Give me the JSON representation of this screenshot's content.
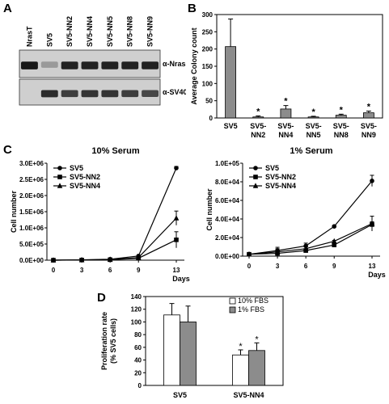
{
  "panel_labels": {
    "a": "A",
    "b": "B",
    "c": "C",
    "d": "D"
  },
  "blot": {
    "lanes": [
      "NrasT",
      "SV5",
      "SV5-NN2",
      "SV5-NN4",
      "SV5-NN5",
      "SV5-NN8",
      "SV5-NN9"
    ],
    "bands": [
      {
        "label": "α-Nras",
        "intensity": [
          0.95,
          0.25,
          0.9,
          0.9,
          0.9,
          0.9,
          0.9
        ]
      },
      {
        "label": "α-SV40",
        "intensity": [
          0.0,
          0.85,
          0.75,
          0.8,
          0.8,
          0.75,
          0.7
        ]
      }
    ]
  },
  "chart_data": [
    {
      "id": "B",
      "type": "bar",
      "title": "",
      "xlabel": "",
      "ylabel": "Average Colony count",
      "ylim": [
        0,
        300
      ],
      "yticks": [
        "0",
        "50",
        "100",
        "150",
        "200",
        "250",
        "300"
      ],
      "categories": [
        "SV5",
        "SV5-NN2",
        "SV5-NN4",
        "SV5-NN5",
        "SV5-NN8",
        "SV5-NN9"
      ],
      "category_lines": [
        [
          "SV5"
        ],
        [
          "SV5-",
          "NN2"
        ],
        [
          "SV5-",
          "NN4"
        ],
        [
          "SV5-",
          "NN5"
        ],
        [
          "SV5-",
          "NN8"
        ],
        [
          "SV5-",
          "NN9"
        ]
      ],
      "values": [
        207,
        3,
        26,
        3,
        8,
        15
      ],
      "errors": [
        80,
        3,
        10,
        2,
        3,
        5
      ],
      "annotations": [
        "",
        "*",
        "*",
        "*",
        "*",
        "*"
      ],
      "bar_color": "#8c8c8c"
    },
    {
      "id": "C1",
      "type": "line",
      "title": "10% Serum",
      "xlabel": "Days",
      "ylabel": "Cell number",
      "x": [
        0,
        3,
        6,
        9,
        13
      ],
      "xticks": [
        "0",
        "3",
        "6",
        "9",
        "13"
      ],
      "ylim": [
        0,
        3000000
      ],
      "yticks": [
        "0.0E+00",
        "5.0E+05",
        "1.0E+06",
        "1.5E+06",
        "2.0E+06",
        "2.5E+06",
        "3.0E+06"
      ],
      "legend_position": "top-left",
      "series": [
        {
          "name": "SV5",
          "marker": "circle",
          "values": [
            0,
            10000,
            30000,
            130000,
            2850000
          ],
          "errors": [
            0,
            0,
            0,
            0,
            50000
          ]
        },
        {
          "name": "SV5-NN2",
          "marker": "square",
          "values": [
            0,
            5000,
            15000,
            60000,
            630000
          ],
          "errors": [
            0,
            0,
            0,
            0,
            250000
          ]
        },
        {
          "name": "SV5-NN4",
          "marker": "triangle",
          "values": [
            0,
            8000,
            20000,
            80000,
            1300000
          ],
          "errors": [
            0,
            0,
            0,
            0,
            220000
          ]
        }
      ]
    },
    {
      "id": "C2",
      "type": "line",
      "title": "1% Serum",
      "xlabel": "Days",
      "ylabel": "Cell number",
      "x": [
        0,
        3,
        6,
        9,
        13
      ],
      "xticks": [
        "0",
        "3",
        "6",
        "9",
        "13"
      ],
      "ylim": [
        0,
        100000
      ],
      "yticks": [
        "0.0E+00",
        "2.0E+04",
        "4.0E+04",
        "6.0E+04",
        "8.0E+04",
        "1.0E+05"
      ],
      "legend_position": "top-left",
      "series": [
        {
          "name": "SV5",
          "marker": "circle",
          "values": [
            2000,
            6000,
            11000,
            32000,
            81000
          ],
          "errors": [
            0,
            2000,
            3000,
            1000,
            6000
          ]
        },
        {
          "name": "SV5-NN2",
          "marker": "square",
          "values": [
            2000,
            3000,
            6000,
            12000,
            34000
          ],
          "errors": [
            0,
            1000,
            1000,
            1000,
            3000
          ]
        },
        {
          "name": "SV5-NN4",
          "marker": "triangle",
          "values": [
            2000,
            4500,
            8000,
            16000,
            35000
          ],
          "errors": [
            0,
            5000,
            2000,
            1000,
            8000
          ]
        }
      ]
    },
    {
      "id": "D",
      "type": "bar",
      "title": "",
      "xlabel": "",
      "ylabel": "Proliferation rate (% SV5 cells)",
      "ylabel_lines": [
        "Proliferation rate",
        "(% SV5 cells)"
      ],
      "ylim": [
        0,
        140
      ],
      "yticks": [
        "0",
        "20",
        "40",
        "60",
        "80",
        "100",
        "120",
        "140"
      ],
      "categories": [
        "SV5",
        "SV5-NN4"
      ],
      "legend_position": "top-right",
      "series": [
        {
          "name": "10% FBS",
          "color": "#ffffff",
          "values": [
            111,
            48
          ],
          "errors": [
            18,
            8
          ],
          "annotations": [
            "",
            "*"
          ]
        },
        {
          "name": "1% FBS",
          "color": "#8c8c8c",
          "values": [
            100,
            55
          ],
          "errors": [
            25,
            12
          ],
          "annotations": [
            "",
            "*"
          ]
        }
      ]
    }
  ]
}
